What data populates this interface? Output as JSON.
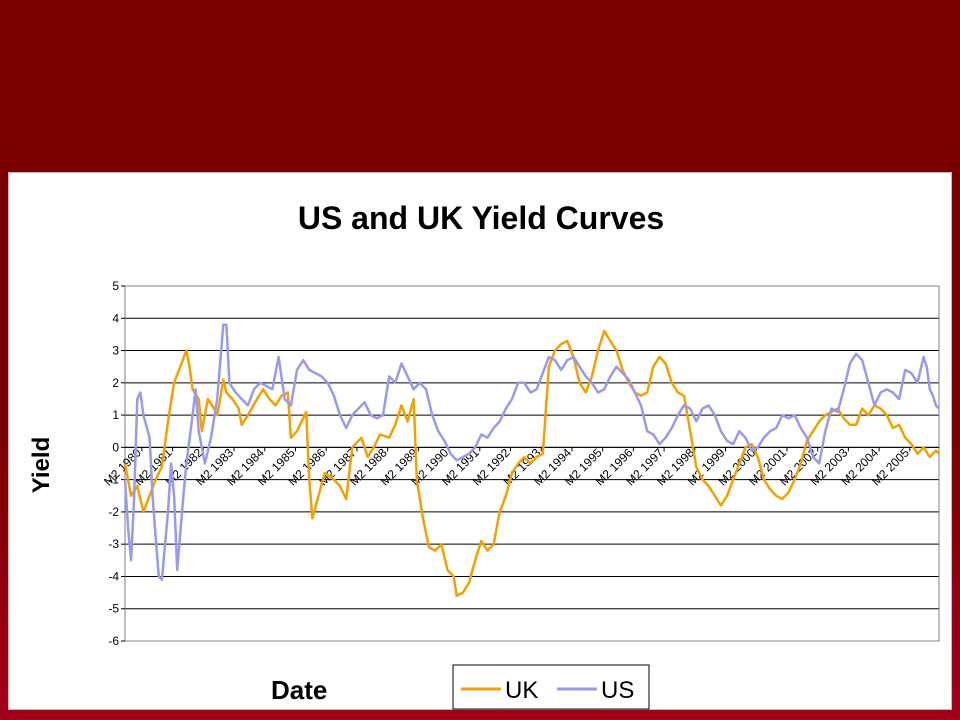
{
  "slide": {
    "background_color": "#7a0000"
  },
  "chart_data": {
    "type": "line",
    "title": "US and UK Yield Curves",
    "xlabel": "Date",
    "ylabel": "Yield",
    "ylim": [
      -6,
      5
    ],
    "yticks": [
      5,
      4,
      3,
      2,
      1,
      0,
      -1,
      -2,
      -3,
      -4,
      -5,
      -6
    ],
    "x_categories": [
      "M2 1980",
      "M2 1981",
      "M2 1982",
      "M2 1983",
      "M2 1984",
      "M2 1985",
      "M2 1986",
      "M2 1987",
      "M2 1988",
      "M2 1989",
      "M2 1990",
      "M2 1991",
      "M2 1992",
      "M2 1993",
      "M2 1994",
      "M2 1995",
      "M2 1996",
      "M2 1997",
      "M2 1998",
      "M2 1999",
      "M2 2000",
      "M2 2001",
      "M2 2002",
      "M2 2003",
      "M2 2004",
      "M2 2005"
    ],
    "x_range": [
      1980.0,
      2006.5
    ],
    "grid": "horizontal",
    "legend_position": "bottom-right",
    "series": [
      {
        "name": "UK",
        "color": "#f5a000",
        "points": [
          [
            1980.0,
            -0.5
          ],
          [
            1980.2,
            -1.5
          ],
          [
            1980.4,
            -1.2
          ],
          [
            1980.6,
            -2.0
          ],
          [
            1980.8,
            -1.5
          ],
          [
            1981.0,
            -1.0
          ],
          [
            1981.2,
            -0.6
          ],
          [
            1981.4,
            0.8
          ],
          [
            1981.6,
            2.0
          ],
          [
            1981.8,
            2.5
          ],
          [
            1982.0,
            3.0
          ],
          [
            1982.1,
            2.5
          ],
          [
            1982.2,
            1.8
          ],
          [
            1982.4,
            1.5
          ],
          [
            1982.5,
            0.5
          ],
          [
            1982.7,
            1.5
          ],
          [
            1982.9,
            1.2
          ],
          [
            1983.0,
            1.0
          ],
          [
            1983.1,
            1.5
          ],
          [
            1983.2,
            2.1
          ],
          [
            1983.3,
            1.7
          ],
          [
            1983.5,
            1.5
          ],
          [
            1983.7,
            1.2
          ],
          [
            1983.8,
            0.7
          ],
          [
            1984.0,
            1.0
          ],
          [
            1984.3,
            1.5
          ],
          [
            1984.5,
            1.8
          ],
          [
            1984.7,
            1.5
          ],
          [
            1984.9,
            1.3
          ],
          [
            1985.1,
            1.6
          ],
          [
            1985.3,
            1.7
          ],
          [
            1985.4,
            0.3
          ],
          [
            1985.6,
            0.5
          ],
          [
            1985.9,
            1.1
          ],
          [
            1986.0,
            -1.0
          ],
          [
            1986.1,
            -2.2
          ],
          [
            1986.3,
            -1.5
          ],
          [
            1986.5,
            -0.8
          ],
          [
            1986.8,
            -1.0
          ],
          [
            1987.0,
            -1.2
          ],
          [
            1987.2,
            -1.6
          ],
          [
            1987.4,
            0.0
          ],
          [
            1987.7,
            0.3
          ],
          [
            1987.9,
            -0.3
          ],
          [
            1988.1,
            0.0
          ],
          [
            1988.3,
            0.4
          ],
          [
            1988.6,
            0.3
          ],
          [
            1988.8,
            0.7
          ],
          [
            1989.0,
            1.3
          ],
          [
            1989.2,
            0.8
          ],
          [
            1989.4,
            1.5
          ],
          [
            1989.5,
            -1.0
          ],
          [
            1989.7,
            -2.2
          ],
          [
            1989.9,
            -3.1
          ],
          [
            1990.1,
            -3.2
          ],
          [
            1990.3,
            -3.0
          ],
          [
            1990.5,
            -3.8
          ],
          [
            1990.7,
            -4.0
          ],
          [
            1990.8,
            -4.6
          ],
          [
            1991.0,
            -4.5
          ],
          [
            1991.2,
            -4.2
          ],
          [
            1991.4,
            -3.5
          ],
          [
            1991.6,
            -2.9
          ],
          [
            1991.8,
            -3.2
          ],
          [
            1992.0,
            -3.0
          ],
          [
            1992.2,
            -2.0
          ],
          [
            1992.4,
            -1.5
          ],
          [
            1992.6,
            -0.8
          ],
          [
            1992.8,
            -0.5
          ],
          [
            1993.0,
            -0.3
          ],
          [
            1993.2,
            -0.5
          ],
          [
            1993.4,
            -0.3
          ],
          [
            1993.6,
            -0.2
          ],
          [
            1993.8,
            2.5
          ],
          [
            1994.0,
            3.0
          ],
          [
            1994.2,
            3.2
          ],
          [
            1994.4,
            3.3
          ],
          [
            1994.6,
            2.8
          ],
          [
            1994.8,
            2.0
          ],
          [
            1995.0,
            1.7
          ],
          [
            1995.2,
            2.2
          ],
          [
            1995.4,
            3.0
          ],
          [
            1995.6,
            3.6
          ],
          [
            1995.8,
            3.3
          ],
          [
            1996.0,
            3.0
          ],
          [
            1996.2,
            2.4
          ],
          [
            1996.4,
            2.0
          ],
          [
            1996.6,
            1.7
          ],
          [
            1996.8,
            1.6
          ],
          [
            1997.0,
            1.7
          ],
          [
            1997.2,
            2.5
          ],
          [
            1997.4,
            2.8
          ],
          [
            1997.6,
            2.6
          ],
          [
            1997.8,
            2.0
          ],
          [
            1998.0,
            1.7
          ],
          [
            1998.2,
            1.6
          ],
          [
            1998.4,
            0.5
          ],
          [
            1998.6,
            -0.6
          ],
          [
            1998.8,
            -1.0
          ],
          [
            1999.0,
            -1.2
          ],
          [
            1999.2,
            -1.5
          ],
          [
            1999.4,
            -1.8
          ],
          [
            1999.6,
            -1.5
          ],
          [
            1999.8,
            -1.0
          ],
          [
            2000.0,
            -0.5
          ],
          [
            2000.2,
            0.0
          ],
          [
            2000.4,
            0.1
          ],
          [
            2000.6,
            -0.3
          ],
          [
            2000.8,
            -1.0
          ],
          [
            2001.0,
            -1.3
          ],
          [
            2001.2,
            -1.5
          ],
          [
            2001.4,
            -1.6
          ],
          [
            2001.6,
            -1.4
          ],
          [
            2001.8,
            -1.0
          ],
          [
            2002.0,
            -0.5
          ],
          [
            2002.2,
            0.2
          ],
          [
            2002.4,
            0.5
          ],
          [
            2002.6,
            0.8
          ],
          [
            2002.8,
            1.0
          ],
          [
            2003.0,
            1.1
          ],
          [
            2003.2,
            1.2
          ],
          [
            2003.4,
            0.9
          ],
          [
            2003.6,
            0.7
          ],
          [
            2003.8,
            0.7
          ],
          [
            2004.0,
            1.2
          ],
          [
            2004.2,
            1.0
          ],
          [
            2004.4,
            1.3
          ],
          [
            2004.6,
            1.2
          ],
          [
            2004.8,
            1.0
          ],
          [
            2005.0,
            0.6
          ],
          [
            2005.2,
            0.7
          ],
          [
            2005.4,
            0.3
          ],
          [
            2005.6,
            0.1
          ],
          [
            2005.8,
            -0.2
          ],
          [
            2006.0,
            0.0
          ],
          [
            2006.2,
            -0.3
          ],
          [
            2006.4,
            -0.1
          ],
          [
            2006.5,
            -0.2
          ]
        ]
      },
      {
        "name": "US",
        "color": "#9999ee",
        "points": [
          [
            1980.0,
            -1.0
          ],
          [
            1980.1,
            -2.5
          ],
          [
            1980.2,
            -3.5
          ],
          [
            1980.3,
            -1.5
          ],
          [
            1980.4,
            1.5
          ],
          [
            1980.5,
            1.7
          ],
          [
            1980.6,
            1.0
          ],
          [
            1980.8,
            0.3
          ],
          [
            1980.9,
            -1.5
          ],
          [
            1981.0,
            -2.8
          ],
          [
            1981.1,
            -4.0
          ],
          [
            1981.2,
            -4.1
          ],
          [
            1981.4,
            -2.0
          ],
          [
            1981.5,
            -0.5
          ],
          [
            1981.6,
            -1.5
          ],
          [
            1981.7,
            -3.8
          ],
          [
            1981.9,
            -1.5
          ],
          [
            1982.0,
            -0.5
          ],
          [
            1982.2,
            1.0
          ],
          [
            1982.3,
            1.8
          ],
          [
            1982.4,
            0.5
          ],
          [
            1982.6,
            -0.5
          ],
          [
            1982.8,
            0.3
          ],
          [
            1983.0,
            1.5
          ],
          [
            1983.2,
            3.8
          ],
          [
            1983.3,
            3.8
          ],
          [
            1983.4,
            2.0
          ],
          [
            1983.6,
            1.7
          ],
          [
            1983.8,
            1.5
          ],
          [
            1984.0,
            1.3
          ],
          [
            1984.2,
            1.8
          ],
          [
            1984.4,
            2.0
          ],
          [
            1984.6,
            1.9
          ],
          [
            1984.8,
            1.8
          ],
          [
            1985.0,
            2.8
          ],
          [
            1985.2,
            1.5
          ],
          [
            1985.4,
            1.3
          ],
          [
            1985.6,
            2.4
          ],
          [
            1985.8,
            2.7
          ],
          [
            1986.0,
            2.4
          ],
          [
            1986.2,
            2.3
          ],
          [
            1986.4,
            2.2
          ],
          [
            1986.6,
            2.0
          ],
          [
            1986.8,
            1.6
          ],
          [
            1987.0,
            1.0
          ],
          [
            1987.2,
            0.6
          ],
          [
            1987.4,
            1.0
          ],
          [
            1987.6,
            1.2
          ],
          [
            1987.8,
            1.4
          ],
          [
            1988.0,
            1.0
          ],
          [
            1988.2,
            0.9
          ],
          [
            1988.4,
            1.0
          ],
          [
            1988.6,
            2.2
          ],
          [
            1988.8,
            2.0
          ],
          [
            1989.0,
            2.6
          ],
          [
            1989.2,
            2.2
          ],
          [
            1989.4,
            1.8
          ],
          [
            1989.6,
            2.0
          ],
          [
            1989.8,
            1.8
          ],
          [
            1990.0,
            1.0
          ],
          [
            1990.2,
            0.5
          ],
          [
            1990.4,
            0.2
          ],
          [
            1990.6,
            -0.2
          ],
          [
            1990.8,
            -0.4
          ],
          [
            1991.0,
            -0.3
          ],
          [
            1991.2,
            -0.2
          ],
          [
            1991.4,
            0.0
          ],
          [
            1991.6,
            0.4
          ],
          [
            1991.8,
            0.3
          ],
          [
            1992.0,
            0.6
          ],
          [
            1992.2,
            0.8
          ],
          [
            1992.4,
            1.2
          ],
          [
            1992.6,
            1.5
          ],
          [
            1992.8,
            2.0
          ],
          [
            1993.0,
            2.0
          ],
          [
            1993.2,
            1.7
          ],
          [
            1993.4,
            1.8
          ],
          [
            1993.6,
            2.3
          ],
          [
            1993.8,
            2.8
          ],
          [
            1994.0,
            2.7
          ],
          [
            1994.2,
            2.4
          ],
          [
            1994.4,
            2.7
          ],
          [
            1994.6,
            2.8
          ],
          [
            1994.8,
            2.5
          ],
          [
            1995.0,
            2.2
          ],
          [
            1995.2,
            2.0
          ],
          [
            1995.4,
            1.7
          ],
          [
            1995.6,
            1.8
          ],
          [
            1995.8,
            2.2
          ],
          [
            1996.0,
            2.5
          ],
          [
            1996.2,
            2.3
          ],
          [
            1996.4,
            2.1
          ],
          [
            1996.6,
            1.7
          ],
          [
            1996.8,
            1.3
          ],
          [
            1997.0,
            0.5
          ],
          [
            1997.2,
            0.4
          ],
          [
            1997.4,
            0.1
          ],
          [
            1997.6,
            0.3
          ],
          [
            1997.8,
            0.6
          ],
          [
            1998.0,
            1.0
          ],
          [
            1998.2,
            1.3
          ],
          [
            1998.4,
            1.2
          ],
          [
            1998.6,
            0.8
          ],
          [
            1998.8,
            1.2
          ],
          [
            1999.0,
            1.3
          ],
          [
            1999.2,
            1.0
          ],
          [
            1999.4,
            0.5
          ],
          [
            1999.6,
            0.2
          ],
          [
            1999.8,
            0.1
          ],
          [
            2000.0,
            0.5
          ],
          [
            2000.2,
            0.3
          ],
          [
            2000.4,
            -0.1
          ],
          [
            2000.6,
            0.0
          ],
          [
            2000.8,
            0.3
          ],
          [
            2001.0,
            0.5
          ],
          [
            2001.2,
            0.6
          ],
          [
            2001.4,
            1.0
          ],
          [
            2001.6,
            0.9
          ],
          [
            2001.8,
            1.0
          ],
          [
            2002.0,
            0.6
          ],
          [
            2002.2,
            0.3
          ],
          [
            2002.4,
            -0.3
          ],
          [
            2002.6,
            -0.5
          ],
          [
            2002.8,
            0.5
          ],
          [
            2003.0,
            1.2
          ],
          [
            2003.2,
            1.1
          ],
          [
            2003.4,
            1.8
          ],
          [
            2003.6,
            2.6
          ],
          [
            2003.8,
            2.9
          ],
          [
            2004.0,
            2.7
          ],
          [
            2004.2,
            2.0
          ],
          [
            2004.4,
            1.3
          ],
          [
            2004.6,
            1.7
          ],
          [
            2004.8,
            1.8
          ],
          [
            2005.0,
            1.7
          ],
          [
            2005.2,
            1.5
          ],
          [
            2005.4,
            2.4
          ],
          [
            2005.6,
            2.3
          ],
          [
            2005.8,
            2.0
          ],
          [
            2006.0,
            2.8
          ],
          [
            2006.1,
            2.5
          ],
          [
            2006.2,
            1.8
          ],
          [
            2006.3,
            1.6
          ],
          [
            2006.4,
            1.3
          ],
          [
            2006.5,
            1.2
          ]
        ]
      }
    ]
  }
}
